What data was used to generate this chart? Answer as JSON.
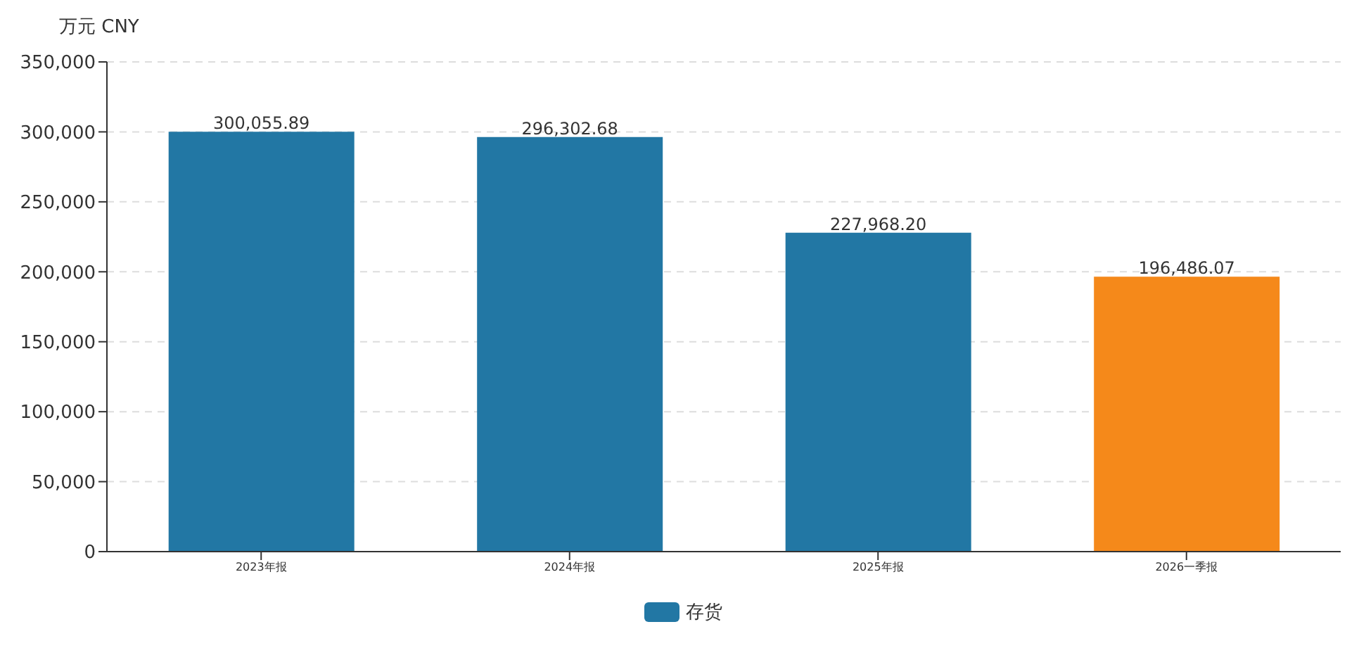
{
  "chart_data": {
    "type": "bar",
    "ylabel": "万元  CNY",
    "categories": [
      "2023年报",
      "2024年报",
      "2025年报",
      "2026一季报"
    ],
    "series": [
      {
        "name": "存货",
        "color": "#2277a4",
        "colors": [
          "#2277a4",
          "#2277a4",
          "#2277a4",
          "#f5891a"
        ],
        "values": [
          300055.89,
          296302.68,
          227968.2,
          196486.07
        ],
        "value_labels": [
          "300,055.89",
          "296,302.68",
          "227,968.20",
          "196,486.07"
        ]
      }
    ],
    "ylim": [
      0,
      350000
    ],
    "yticks": [
      {
        "value": 0,
        "label": "0"
      },
      {
        "value": 50000,
        "label": "50,000"
      },
      {
        "value": 100000,
        "label": "100,000"
      },
      {
        "value": 150000,
        "label": "150,000"
      },
      {
        "value": 200000,
        "label": "200,000"
      },
      {
        "value": 250000,
        "label": "250,000"
      },
      {
        "value": 300000,
        "label": "300,000"
      },
      {
        "value": 350000,
        "label": "350,000"
      }
    ],
    "grid": "y",
    "legend": "bottom"
  }
}
